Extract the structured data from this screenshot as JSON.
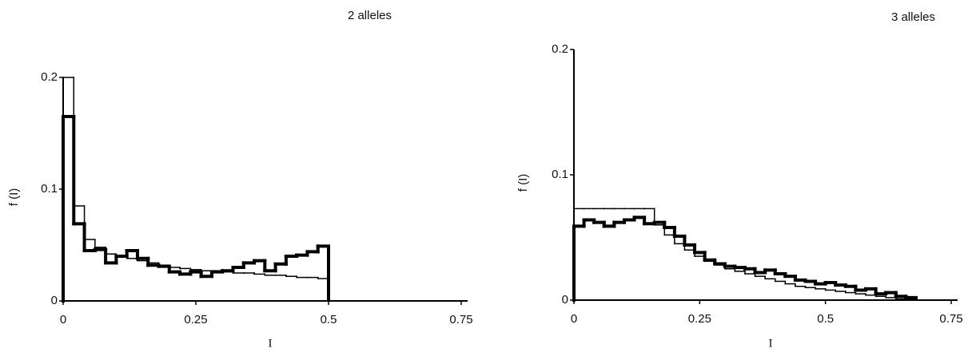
{
  "chart_data": [
    {
      "type": "histogram",
      "title": "2 alleles",
      "xlabel": "I",
      "ylabel": "f (I)",
      "bins": [
        0,
        0.02,
        0.04,
        0.06,
        0.08,
        0.1,
        0.12,
        0.14,
        0.16,
        0.18,
        0.2,
        0.22,
        0.24,
        0.26,
        0.28,
        0.3,
        0.32,
        0.34,
        0.36,
        0.38,
        0.4,
        0.42,
        0.44,
        0.46,
        0.48,
        0.5
      ],
      "series": [
        {
          "color": "#000000",
          "linewidth": 1.5,
          "values": [
            0.2,
            0.085,
            0.055,
            0.048,
            0.042,
            0.04,
            0.038,
            0.036,
            0.034,
            0.032,
            0.03,
            0.029,
            0.028,
            0.027,
            0.027,
            0.026,
            0.025,
            0.025,
            0.024,
            0.023,
            0.023,
            0.022,
            0.021,
            0.021,
            0.02
          ]
        },
        {
          "color": "#000000",
          "linewidth": 4,
          "values": [
            0.165,
            0.069,
            0.045,
            0.046,
            0.034,
            0.04,
            0.045,
            0.038,
            0.032,
            0.031,
            0.026,
            0.024,
            0.026,
            0.022,
            0.026,
            0.027,
            0.03,
            0.034,
            0.036,
            0.027,
            0.033,
            0.04,
            0.041,
            0.044,
            0.049
          ]
        }
      ],
      "xlim": [
        0,
        0.75
      ],
      "ylim": [
        0,
        0.2
      ],
      "xticks": [
        0,
        0.25,
        0.5,
        0.75
      ],
      "yticks": [
        0,
        0.1,
        0.2
      ]
    },
    {
      "type": "histogram",
      "title": "3 alleles",
      "xlabel": "I",
      "ylabel": "f (I)",
      "bins": [
        0,
        0.02,
        0.04,
        0.06,
        0.08,
        0.1,
        0.12,
        0.14,
        0.16,
        0.18,
        0.2,
        0.22,
        0.24,
        0.26,
        0.28,
        0.3,
        0.32,
        0.34,
        0.36,
        0.38,
        0.4,
        0.42,
        0.44,
        0.46,
        0.48,
        0.5,
        0.52,
        0.54,
        0.56,
        0.58,
        0.6,
        0.62,
        0.64,
        0.66,
        0.68
      ],
      "series": [
        {
          "color": "#000000",
          "linewidth": 1.5,
          "values": [
            0.073,
            0.073,
            0.073,
            0.073,
            0.073,
            0.073,
            0.073,
            0.073,
            0.06,
            0.052,
            0.045,
            0.04,
            0.035,
            0.031,
            0.028,
            0.025,
            0.023,
            0.021,
            0.019,
            0.017,
            0.015,
            0.013,
            0.011,
            0.01,
            0.009,
            0.008,
            0.007,
            0.006,
            0.005,
            0.004,
            0.003,
            0.002,
            0.001,
            0.0005
          ]
        },
        {
          "color": "#000000",
          "linewidth": 4,
          "values": [
            0.059,
            0.064,
            0.062,
            0.059,
            0.062,
            0.064,
            0.066,
            0.061,
            0.062,
            0.058,
            0.051,
            0.044,
            0.038,
            0.032,
            0.029,
            0.027,
            0.026,
            0.025,
            0.022,
            0.024,
            0.021,
            0.019,
            0.016,
            0.015,
            0.013,
            0.014,
            0.012,
            0.011,
            0.008,
            0.009,
            0.005,
            0.006,
            0.003,
            0.002
          ]
        }
      ],
      "xlim": [
        0,
        0.75
      ],
      "ylim": [
        0,
        0.2
      ],
      "xticks": [
        0,
        0.25,
        0.5,
        0.75
      ],
      "yticks": [
        0,
        0.1,
        0.2
      ]
    }
  ]
}
